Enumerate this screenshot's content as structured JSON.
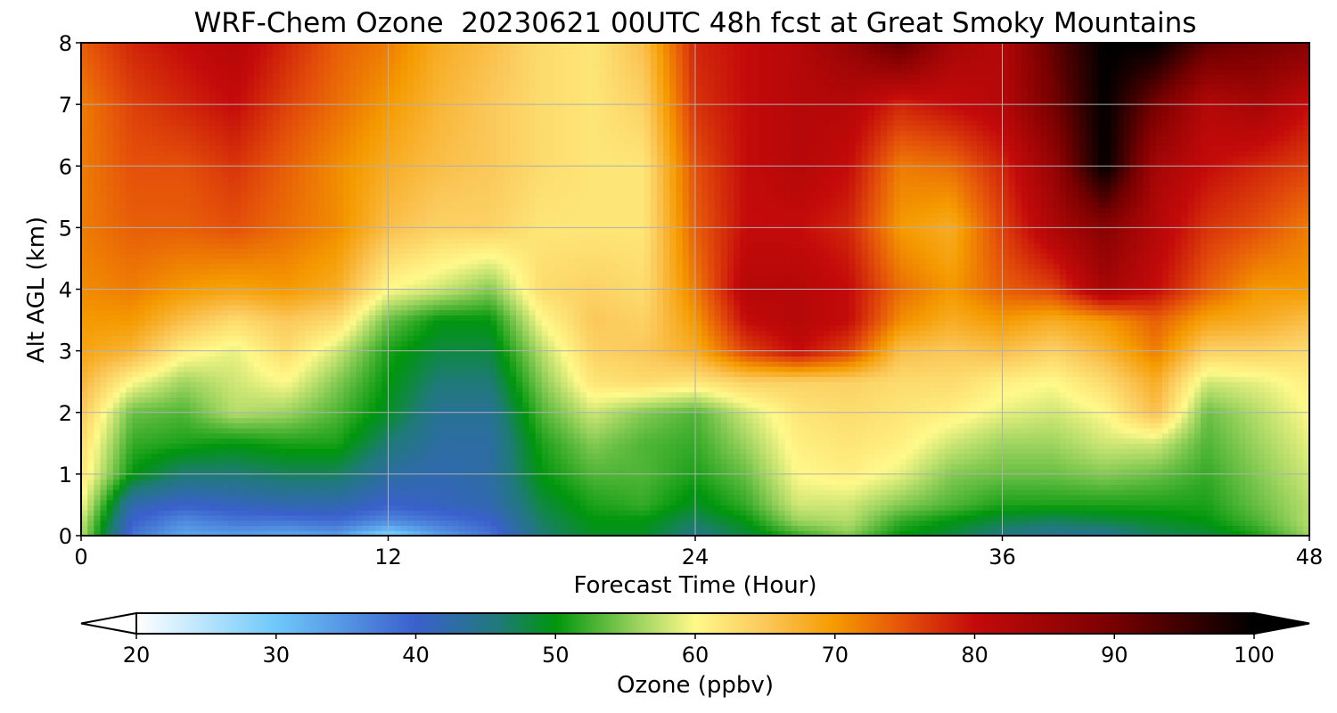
{
  "chart_data": {
    "type": "heatmap",
    "title": "WRF-Chem Ozone  20230621 00UTC 48h fcst at Great Smoky Mountains",
    "xlabel": "Forecast Time (Hour)",
    "ylabel": "Alt AGL (km)",
    "xlim": [
      0,
      48
    ],
    "ylim": [
      0,
      8
    ],
    "x_ticks": [
      "0",
      "12",
      "24",
      "36",
      "48"
    ],
    "y_ticks": [
      "0",
      "1",
      "2",
      "3",
      "4",
      "5",
      "6",
      "7",
      "8"
    ],
    "grid": true,
    "colorbar": {
      "label": "Ozone  (ppbv)",
      "range": [
        20,
        100
      ],
      "ticks": [
        "20",
        "30",
        "40",
        "50",
        "60",
        "70",
        "80",
        "90",
        "100"
      ],
      "extend": "both",
      "stops": [
        {
          "value": 20,
          "color": "#ffffff"
        },
        {
          "value": 30,
          "color": "#6ec8fa"
        },
        {
          "value": 40,
          "color": "#3a60cc"
        },
        {
          "value": 46,
          "color": "#1f7a78"
        },
        {
          "value": 50,
          "color": "#00960c"
        },
        {
          "value": 56,
          "color": "#9ed460"
        },
        {
          "value": 60,
          "color": "#fff98a"
        },
        {
          "value": 65,
          "color": "#fbc85a"
        },
        {
          "value": 70,
          "color": "#f59a00"
        },
        {
          "value": 75,
          "color": "#e4500a"
        },
        {
          "value": 80,
          "color": "#c40a0a"
        },
        {
          "value": 90,
          "color": "#780000"
        },
        {
          "value": 100,
          "color": "#000000"
        }
      ]
    },
    "grid_hours": [
      0,
      2,
      4,
      6,
      8,
      10,
      12,
      14,
      16,
      18,
      20,
      22,
      24,
      26,
      28,
      30,
      32,
      34,
      36,
      38,
      40,
      42,
      44,
      46,
      48
    ],
    "grid_alt_km": [
      0,
      0.25,
      0.5,
      1,
      1.5,
      2,
      2.5,
      3,
      3.5,
      4,
      5,
      6,
      7,
      8
    ],
    "ozone_ppbv": [
      [
        57,
        38,
        33,
        34,
        33,
        34,
        28,
        34,
        38,
        46,
        49,
        49,
        45,
        48,
        52,
        55,
        50,
        48,
        45,
        44,
        44,
        47,
        48,
        51,
        56
      ],
      [
        58,
        40,
        36,
        38,
        38,
        39,
        36,
        38,
        40,
        47,
        50,
        50,
        47,
        50,
        56,
        57,
        52,
        50,
        48,
        47,
        48,
        49,
        50,
        53,
        57
      ],
      [
        60,
        42,
        40,
        41,
        42,
        42,
        40,
        41,
        42,
        48,
        51,
        52,
        49,
        52,
        58,
        58,
        55,
        53,
        51,
        51,
        51,
        51,
        51,
        54,
        57
      ],
      [
        62,
        50,
        46,
        46,
        47,
        47,
        43,
        42,
        43,
        50,
        53,
        53,
        51,
        54,
        60,
        61,
        59,
        55,
        54,
        54,
        55,
        54,
        52,
        55,
        58
      ],
      [
        63,
        52,
        51,
        50,
        51,
        51,
        46,
        43,
        43,
        51,
        55,
        53,
        52,
        56,
        61,
        62,
        61,
        58,
        56,
        56,
        58,
        58,
        53,
        56,
        59
      ],
      [
        65,
        54,
        53,
        57,
        56,
        53,
        49,
        44,
        44,
        53,
        58,
        55,
        53,
        58,
        62,
        63,
        62,
        61,
        59,
        58,
        60,
        66,
        54,
        57,
        60
      ],
      [
        67,
        60,
        56,
        58,
        60,
        55,
        50,
        46,
        46,
        55,
        62,
        63,
        62,
        64,
        64,
        64,
        63,
        63,
        61,
        60,
        63,
        68,
        58,
        59,
        61
      ],
      [
        69,
        67,
        61,
        59,
        63,
        58,
        51,
        48,
        48,
        57,
        64,
        65,
        68,
        76,
        80,
        76,
        66,
        65,
        66,
        64,
        67,
        72,
        64,
        64,
        63
      ],
      [
        70,
        70,
        66,
        63,
        65,
        63,
        54,
        50,
        50,
        60,
        65,
        64,
        70,
        80,
        82,
        80,
        71,
        68,
        70,
        68,
        70,
        74,
        69,
        68,
        66
      ],
      [
        71,
        72,
        70,
        69,
        70,
        68,
        60,
        58,
        55,
        63,
        64,
        63,
        72,
        82,
        82,
        80,
        73,
        70,
        74,
        76,
        84,
        80,
        74,
        70,
        70
      ],
      [
        72,
        74,
        74,
        75,
        73,
        71,
        66,
        64,
        64,
        62,
        62,
        62,
        74,
        80,
        80,
        78,
        70,
        68,
        76,
        83,
        88,
        82,
        77,
        75,
        72
      ],
      [
        72,
        75,
        75,
        77,
        74,
        71,
        68,
        66,
        65,
        63,
        62,
        62,
        75,
        80,
        82,
        80,
        72,
        73,
        78,
        86,
        100,
        84,
        80,
        78,
        76
      ],
      [
        72,
        76,
        78,
        80,
        76,
        73,
        70,
        67,
        65,
        63,
        62,
        64,
        77,
        80,
        82,
        82,
        78,
        80,
        82,
        90,
        100,
        90,
        82,
        84,
        80
      ],
      [
        74,
        78,
        80,
        82,
        78,
        74,
        72,
        68,
        66,
        63,
        62,
        66,
        78,
        80,
        82,
        86,
        92,
        84,
        82,
        92,
        100,
        100,
        92,
        90,
        88
      ]
    ]
  }
}
